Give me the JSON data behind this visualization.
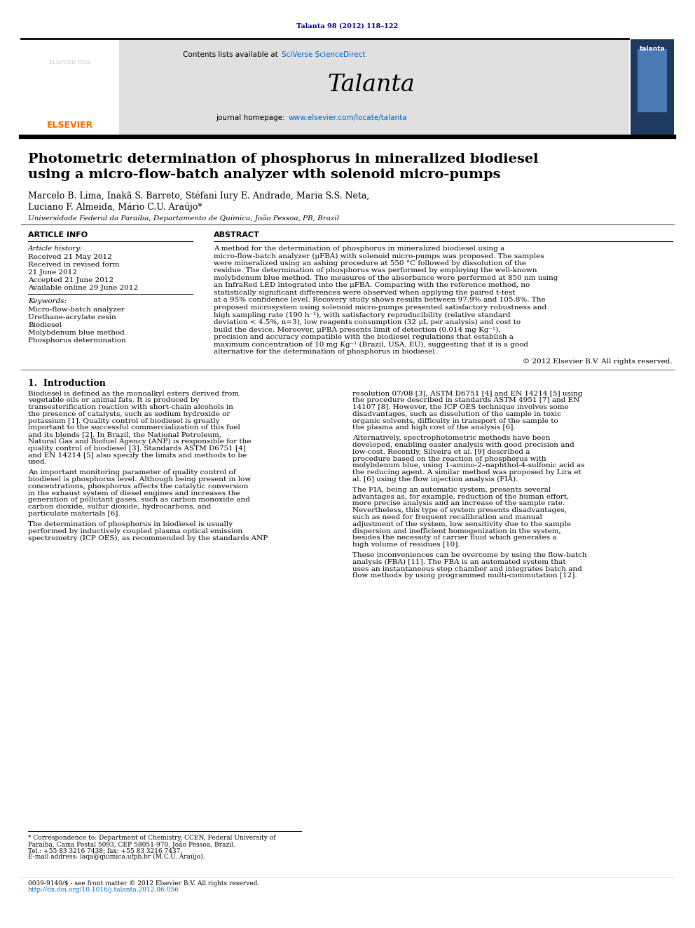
{
  "journal_ref": "Talanta 98 (2012) 118–122",
  "journal_ref_color": "#000080",
  "sciverse_prefix": "Contents lists available at ",
  "sciverse": "SciVerse ScienceDirect",
  "sciverse_color": "#0066CC",
  "journal_name": "Talanta",
  "homepage_label": "journal homepage: ",
  "homepage_url": "www.elsevier.com/locate/talanta",
  "homepage_url_color": "#0066CC",
  "title_line1": "Photometric determination of phosphorus in mineralized biodiesel",
  "title_line2": "using a micro-flow-batch analyzer with solenoid micro-pumps",
  "authors_line1": "Marcelo B. Lima, Inakã S. Barreto, Stéfani Iury E. Andrade, Maria S.S. Neta,",
  "authors_line2": "Luciano F. Almeida, Mário C.U. Araújo*",
  "affiliation": "Universidade Federal da Paraíba, Departamento de Química, João Pessoa, PB, Brazil",
  "section_article_info": "ARTICLE INFO",
  "section_abstract": "ABSTRACT",
  "article_history_label": "Article history:",
  "received": "Received 21 May 2012",
  "revised_label": "Received in revised form",
  "revised_date": "21 June 2012",
  "accepted": "Accepted 21 June 2012",
  "available": "Available online 29 June 2012",
  "keywords_label": "Keywords:",
  "keywords": [
    "Micro-flow-batch analyzer",
    "Urethane-acrylate resin",
    "Biodiesel",
    "Molybdenum blue method",
    "Phosphorus determination"
  ],
  "abstract_text": "A method for the determination of phosphorus in mineralized biodiesel using a micro-flow-batch analyzer (μFBA) with solenoid micro-pumps was proposed. The samples were mineralized using an ashing procedure at 550 °C followed by dissolution of the residue. The determination of phosphorus was performed by employing the well-known molybdenum blue method. The measures of the absorbance were performed at 850 nm using an InfraRed LED integrated into the μFBA. Comparing with the reference method, no statistically significant differences were observed when applying the paired t-test at a 95% confidence level. Recovery study shows results between 97.9% and 105.8%. The proposed microsystem using solenoid micro-pumps presented satisfactory robustness and high sampling rate (190 h⁻¹), with satisfactory reproducibility (relative standard deviation < 4.5%, n=3), low reagents consumption (32 μL per analysis) and cost to build the device. Moreover, μFBA presents limit of detection (0.014 mg Kg⁻¹), precision and accuracy compatible with the biodiesel regulations that establish a maximum concentration of 10 mg Kg⁻¹ (Brazil, USA, EU), suggesting that it is a good alternative for the determination of phosphorus in biodiesel.",
  "copyright": "© 2012 Elsevier B.V. All rights reserved.",
  "intro_heading": "1.  Introduction",
  "intro_col1_para1": "   Biodiesel is defined as the monoalkyl esters derived from vegetable oils or animal fats. It is produced by transesterification reaction with short-chain alcohols in the presence of catalysts, such as sodium hydroxide or potassium [1]. Quality control of biodiesel is greatly important to the successful commercialization of this fuel and its blends [2]. In Brazil, the National Petroleum, Natural Gas and Biofuel Agency (ANP) is responsible for the quality control of biodiesel [3]. Standards ASTM D6751 [4] and EN 14214 [5] also specify the limits and methods to be used.",
  "intro_col1_para2": "   An important monitoring parameter of quality control of biodiesel is phosphorus level. Although being present in low concentrations, phosphorus affects the catalytic conversion in the exhaust system of diesel engines and increases the generation of pollutant gases, such as carbon monoxide and carbon dioxide, sulfur dioxide, hydrocarbons, and particulate materials [6].",
  "intro_col1_para3": "   The determination of phosphorus in biodiesel is usually performed by inductively coupled plasma optical emission spectrometry (ICP OES), as recommended by the standards ANP",
  "intro_col2_para1": "resolution 07/08 [3], ASTM D6751 [4] and EN 14214 [5] using the procedure described in standards ASTM 4951 [7] and EN 14107 [8]. However, the ICP OES technique involves some disadvantages, such as dissolution of the sample in toxic organic solvents, difficulty in transport of the sample to the plasma and high cost of the analysis [6].",
  "intro_col2_para2": "   Alternatively, spectrophotometric methods have been developed, enabling easier analysis with good precision and low-cost. Recently, Silveira et al. [9] described a procedure based on the reaction of phosphorus with molybdenum blue, using 1-amino-2–naphthol-4-sulfonic acid as the reducing agent. A similar method was proposed by Lira et al. [6] using the flow injection analysis (FIA).",
  "intro_col2_para3": "   The FIA, being an automatic system, presents several advantages as, for example, reduction of the human effort, more precise analysis and an increase of the sample rate. Nevertheless, this type of system presents disadvantages, such as need for frequent recalibration and manual adjustment of the system, low sensitivity due to the sample dispersion and inefficient homogenization in the system, besides the necessity of carrier fluid which generates a high volume of residues [10].",
  "intro_col2_para4": "   These inconveniences can be overcome by using the flow-batch analysis (FBA) [11]. The FBA is an automated system that uses an instantaneous stop chamber and integrates batch and flow methods by using programmed multi-commutation [12].",
  "footnote_star": "* Correspondence to: Department of Chemistry, CCEN, Federal University of",
  "footnote2": "Paraíba, Caixa Postal 5093, CEP 58051-970, João Pessoa, Brazil.",
  "footnote3": "Tel.: +55 83 3216 7438; fax: +55 83 3216 7437.",
  "footnote4": "E-mail address: laqa@quimica.ufpb.br (M.C.U. Araújo).",
  "footer1": "0039-9140/$ - see front matter © 2012 Elsevier B.V. All rights reserved.",
  "footer2": "http://dx.doi.org/10.1016/j.talanta.2012.06.056",
  "elsevier_color": "#FF6600",
  "bg_header": "#e0e0e0",
  "link_color": "#0066CC",
  "cover_bg": "#1e3a5f",
  "cover_bg2": "#4a7ab5"
}
